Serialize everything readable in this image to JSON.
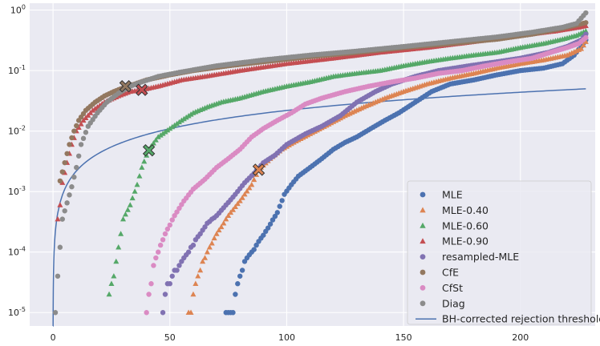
{
  "chart_data": {
    "type": "scatter",
    "title": "",
    "xlabel": "",
    "ylabel": "",
    "yscale": "log",
    "xlim": [
      -10,
      232
    ],
    "ylim": [
      6e-06,
      1.3
    ],
    "grid": true,
    "legend_position": "bottom-right",
    "x_ticks": [
      0,
      50,
      100,
      150,
      200
    ],
    "x_tick_labels": [
      "0",
      "50",
      "100",
      "150",
      "200"
    ],
    "y_ticks": [
      1e-05,
      0.0001,
      0.001,
      0.01,
      0.1,
      1
    ],
    "y_tick_labels": [
      {
        "base": "10",
        "exp": "-5"
      },
      {
        "base": "10",
        "exp": "-4"
      },
      {
        "base": "10",
        "exp": "-3"
      },
      {
        "base": "10",
        "exp": "-2"
      },
      {
        "base": "10",
        "exp": "-1"
      },
      {
        "base": "10",
        "exp": "0"
      }
    ],
    "series": [
      {
        "name": "MLE",
        "marker": "circle",
        "color": "#4c72b0",
        "points": [
          [
            74,
            1e-05
          ],
          [
            77,
            1e-05
          ],
          [
            78,
            2e-05
          ],
          [
            80,
            4e-05
          ],
          [
            82,
            7e-05
          ],
          [
            85,
            0.0001
          ],
          [
            88,
            0.00015
          ],
          [
            92,
            0.00025
          ],
          [
            96,
            0.00045
          ],
          [
            99,
            0.0009
          ],
          [
            102,
            0.0013
          ],
          [
            105,
            0.0018
          ],
          [
            110,
            0.0025
          ],
          [
            115,
            0.0035
          ],
          [
            120,
            0.005
          ],
          [
            125,
            0.0065
          ],
          [
            130,
            0.008
          ],
          [
            136,
            0.011
          ],
          [
            142,
            0.015
          ],
          [
            148,
            0.02
          ],
          [
            155,
            0.03
          ],
          [
            162,
            0.045
          ],
          [
            170,
            0.06
          ],
          [
            180,
            0.07
          ],
          [
            190,
            0.085
          ],
          [
            200,
            0.1
          ],
          [
            210,
            0.11
          ],
          [
            218,
            0.13
          ],
          [
            223,
            0.18
          ],
          [
            226,
            0.25
          ],
          [
            228,
            0.32
          ]
        ],
        "marked": [],
        "n_count": 228
      },
      {
        "name": "MLE-0.40",
        "marker": "triangle",
        "color": "#dd8452",
        "points": [
          [
            58,
            1e-05
          ],
          [
            60,
            2e-05
          ],
          [
            62,
            4e-05
          ],
          [
            64,
            7e-05
          ],
          [
            67,
            0.00012
          ],
          [
            70,
            0.0002
          ],
          [
            75,
            0.0004
          ],
          [
            80,
            0.0007
          ],
          [
            85,
            0.0013
          ],
          [
            88,
            0.0023
          ],
          [
            93,
            0.0035
          ],
          [
            98,
            0.005
          ],
          [
            103,
            0.0065
          ],
          [
            110,
            0.009
          ],
          [
            118,
            0.013
          ],
          [
            125,
            0.018
          ],
          [
            133,
            0.025
          ],
          [
            142,
            0.035
          ],
          [
            150,
            0.045
          ],
          [
            160,
            0.06
          ],
          [
            170,
            0.075
          ],
          [
            180,
            0.09
          ],
          [
            190,
            0.11
          ],
          [
            200,
            0.13
          ],
          [
            210,
            0.15
          ],
          [
            220,
            0.18
          ],
          [
            226,
            0.23
          ],
          [
            228,
            0.3
          ]
        ],
        "marked": [
          [
            88,
            0.0023
          ]
        ],
        "n_count": 228
      },
      {
        "name": "MLE-0.60",
        "marker": "triangle",
        "color": "#55a868",
        "points": [
          [
            24,
            2e-05
          ],
          [
            26,
            4e-05
          ],
          [
            28,
            0.00012
          ],
          [
            30,
            0.00035
          ],
          [
            33,
            0.0006
          ],
          [
            36,
            0.0013
          ],
          [
            38,
            0.0025
          ],
          [
            41,
            0.005
          ],
          [
            45,
            0.008
          ],
          [
            50,
            0.011
          ],
          [
            55,
            0.015
          ],
          [
            60,
            0.02
          ],
          [
            66,
            0.025
          ],
          [
            72,
            0.03
          ],
          [
            80,
            0.035
          ],
          [
            90,
            0.045
          ],
          [
            100,
            0.055
          ],
          [
            110,
            0.065
          ],
          [
            120,
            0.08
          ],
          [
            130,
            0.09
          ],
          [
            140,
            0.1
          ],
          [
            150,
            0.12
          ],
          [
            160,
            0.14
          ],
          [
            170,
            0.16
          ],
          [
            180,
            0.18
          ],
          [
            190,
            0.2
          ],
          [
            200,
            0.24
          ],
          [
            210,
            0.28
          ],
          [
            218,
            0.33
          ],
          [
            224,
            0.38
          ],
          [
            228,
            0.45
          ]
        ],
        "marked": [
          [
            41,
            0.0048
          ]
        ],
        "n_count": 228
      },
      {
        "name": "MLE-0.90",
        "marker": "triangle",
        "color": "#c44e52",
        "points": [
          [
            2,
            0.00035
          ],
          [
            3,
            0.0006
          ],
          [
            4,
            0.0014
          ],
          [
            6,
            0.003
          ],
          [
            8,
            0.006
          ],
          [
            10,
            0.01
          ],
          [
            13,
            0.015
          ],
          [
            17,
            0.022
          ],
          [
            22,
            0.03
          ],
          [
            28,
            0.038
          ],
          [
            33,
            0.045
          ],
          [
            38,
            0.048
          ],
          [
            45,
            0.055
          ],
          [
            55,
            0.07
          ],
          [
            65,
            0.08
          ],
          [
            80,
            0.1
          ],
          [
            100,
            0.13
          ],
          [
            120,
            0.16
          ],
          [
            140,
            0.2
          ],
          [
            160,
            0.24
          ],
          [
            180,
            0.3
          ],
          [
            200,
            0.38
          ],
          [
            215,
            0.45
          ],
          [
            225,
            0.52
          ],
          [
            228,
            0.55
          ]
        ],
        "marked": [
          [
            38,
            0.048
          ]
        ],
        "n_count": 228
      },
      {
        "name": "resampled-MLE",
        "marker": "circle",
        "color": "#8172b2",
        "points": [
          [
            47,
            1e-05
          ],
          [
            48,
            2e-05
          ],
          [
            51,
            4e-05
          ],
          [
            54,
            6e-05
          ],
          [
            58,
            0.0001
          ],
          [
            62,
            0.00018
          ],
          [
            66,
            0.0003
          ],
          [
            70,
            0.0004
          ],
          [
            74,
            0.0006
          ],
          [
            78,
            0.0009
          ],
          [
            82,
            0.0014
          ],
          [
            86,
            0.002
          ],
          [
            90,
            0.003
          ],
          [
            95,
            0.004
          ],
          [
            100,
            0.006
          ],
          [
            108,
            0.009
          ],
          [
            115,
            0.012
          ],
          [
            123,
            0.018
          ],
          [
            130,
            0.03
          ],
          [
            138,
            0.045
          ],
          [
            145,
            0.06
          ],
          [
            155,
            0.08
          ],
          [
            165,
            0.1
          ],
          [
            178,
            0.12
          ],
          [
            190,
            0.14
          ],
          [
            200,
            0.16
          ],
          [
            212,
            0.2
          ],
          [
            220,
            0.25
          ],
          [
            226,
            0.32
          ],
          [
            228,
            0.4
          ]
        ],
        "marked": [],
        "n_count": 228
      },
      {
        "name": "CfE",
        "marker": "circle",
        "color": "#937860",
        "points": [
          [
            3,
            0.0015
          ],
          [
            5,
            0.003
          ],
          [
            7,
            0.006
          ],
          [
            9,
            0.01
          ],
          [
            11,
            0.015
          ],
          [
            14,
            0.022
          ],
          [
            18,
            0.03
          ],
          [
            22,
            0.038
          ],
          [
            26,
            0.045
          ],
          [
            30,
            0.052
          ],
          [
            35,
            0.06
          ],
          [
            40,
            0.07
          ],
          [
            50,
            0.085
          ],
          [
            60,
            0.1
          ],
          [
            75,
            0.12
          ],
          [
            90,
            0.14
          ],
          [
            110,
            0.17
          ],
          [
            130,
            0.2
          ],
          [
            150,
            0.24
          ],
          [
            170,
            0.28
          ],
          [
            190,
            0.33
          ],
          [
            205,
            0.4
          ],
          [
            218,
            0.5
          ],
          [
            225,
            0.58
          ],
          [
            228,
            0.62
          ]
        ],
        "marked": [
          [
            31,
            0.055
          ]
        ],
        "n_count": 228
      },
      {
        "name": "CfSt",
        "marker": "circle",
        "color": "#da8bc3",
        "points": [
          [
            40,
            1e-05
          ],
          [
            41,
            2e-05
          ],
          [
            43,
            6e-05
          ],
          [
            45,
            0.0001
          ],
          [
            48,
            0.0002
          ],
          [
            52,
            0.0004
          ],
          [
            56,
            0.0007
          ],
          [
            60,
            0.0011
          ],
          [
            65,
            0.0016
          ],
          [
            70,
            0.0025
          ],
          [
            75,
            0.0035
          ],
          [
            80,
            0.005
          ],
          [
            85,
            0.008
          ],
          [
            90,
            0.011
          ],
          [
            96,
            0.015
          ],
          [
            102,
            0.02
          ],
          [
            108,
            0.028
          ],
          [
            115,
            0.035
          ],
          [
            125,
            0.045
          ],
          [
            135,
            0.055
          ],
          [
            145,
            0.065
          ],
          [
            155,
            0.075
          ],
          [
            165,
            0.09
          ],
          [
            175,
            0.1
          ],
          [
            185,
            0.12
          ],
          [
            195,
            0.14
          ],
          [
            205,
            0.16
          ],
          [
            213,
            0.2
          ],
          [
            220,
            0.24
          ],
          [
            225,
            0.28
          ],
          [
            228,
            0.35
          ]
        ],
        "marked": [],
        "n_count": 228
      },
      {
        "name": "Diag",
        "marker": "circle",
        "color": "#8c8c8c",
        "points": [
          [
            1,
            1e-05
          ],
          [
            2,
            4e-05
          ],
          [
            3,
            0.00012
          ],
          [
            4,
            0.00035
          ],
          [
            6,
            0.00065
          ],
          [
            8,
            0.0012
          ],
          [
            10,
            0.0025
          ],
          [
            12,
            0.006
          ],
          [
            15,
            0.012
          ],
          [
            19,
            0.02
          ],
          [
            23,
            0.03
          ],
          [
            28,
            0.042
          ],
          [
            33,
            0.055
          ],
          [
            38,
            0.065
          ],
          [
            45,
            0.08
          ],
          [
            55,
            0.095
          ],
          [
            70,
            0.12
          ],
          [
            90,
            0.15
          ],
          [
            110,
            0.18
          ],
          [
            130,
            0.21
          ],
          [
            150,
            0.25
          ],
          [
            170,
            0.3
          ],
          [
            190,
            0.36
          ],
          [
            205,
            0.43
          ],
          [
            218,
            0.52
          ],
          [
            224,
            0.6
          ],
          [
            228,
            0.9
          ]
        ],
        "marked": [],
        "n_count": 228
      }
    ],
    "threshold_line": {
      "name": "BH-corrected rejection threshold",
      "color": "#4c72b0",
      "alpha": 0.05,
      "n": 228
    }
  }
}
